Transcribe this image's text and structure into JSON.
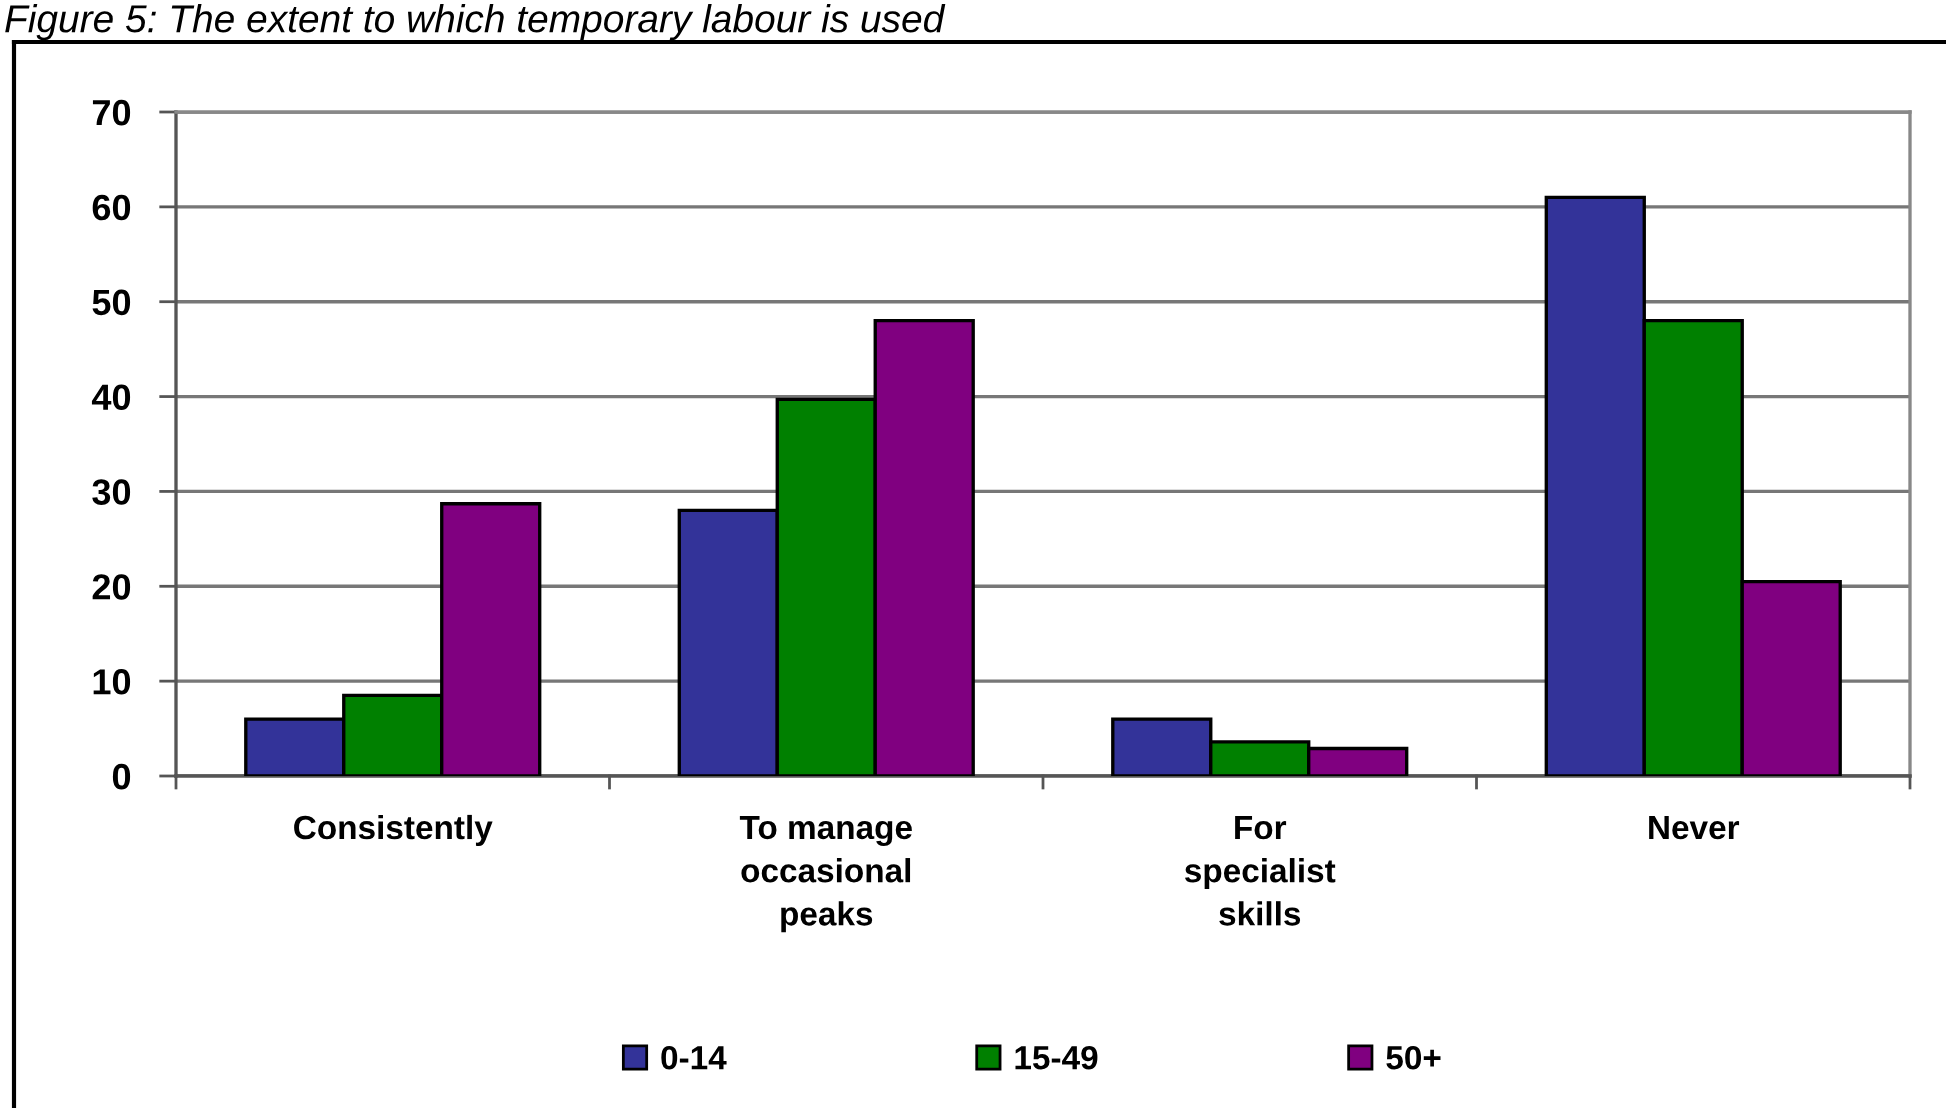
{
  "chart_data": {
    "type": "bar",
    "title": "Figure 5: The extent to which temporary labour is used",
    "categories": [
      "Consistently",
      "To manage\noccasional\npeaks",
      "For\nspecialist\nskills",
      "Never"
    ],
    "series": [
      {
        "name": "0-14",
        "color": "#333399",
        "values": [
          6,
          28,
          6,
          61
        ]
      },
      {
        "name": "15-49",
        "color": "#008000",
        "values": [
          8.5,
          39.7,
          3.6,
          48
        ]
      },
      {
        "name": "50+",
        "color": "#800080",
        "values": [
          28.7,
          48,
          2.9,
          20.5
        ]
      }
    ],
    "ylim": [
      0,
      70
    ],
    "yticks": [
      0,
      10,
      20,
      30,
      40,
      50,
      60,
      70
    ],
    "grid": "y",
    "legend": "bottom"
  }
}
